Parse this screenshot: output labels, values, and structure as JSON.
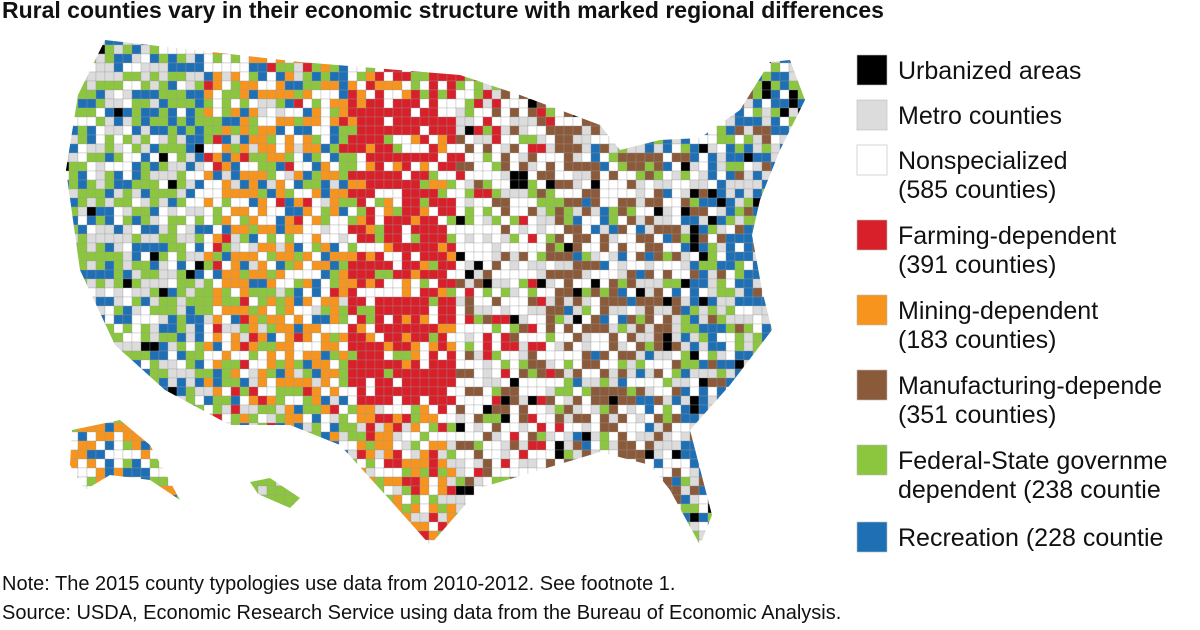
{
  "title": "Rural counties vary in their economic structure with marked regional differences",
  "legend": [
    {
      "color": "#000000",
      "lines": [
        "Urbanized areas"
      ]
    },
    {
      "color": "#dcdcdc",
      "lines": [
        "Metro counties"
      ]
    },
    {
      "color": "#ffffff",
      "lines": [
        "Nonspecialized",
        "(585 counties)"
      ]
    },
    {
      "color": "#d7202a",
      "lines": [
        "Farming-dependent",
        "(391 counties)"
      ]
    },
    {
      "color": "#f7941d",
      "lines": [
        "Mining-dependent",
        "(183 counties)"
      ]
    },
    {
      "color": "#8a5a3b",
      "lines": [
        "Manufacturing-depende",
        "(351 counties)"
      ]
    },
    {
      "color": "#8cc63f",
      "lines": [
        "Federal-State governme",
        "dependent (238 countie"
      ]
    },
    {
      "color": "#1f6fb5",
      "lines": [
        "Recreation (228 countie"
      ]
    }
  ],
  "notes": [
    "Note: The 2015 county typologies use data from 2010-2012. See footnote 1.",
    "Source: USDA, Economic Research Service using data from the Bureau of Economic Analysis."
  ]
}
